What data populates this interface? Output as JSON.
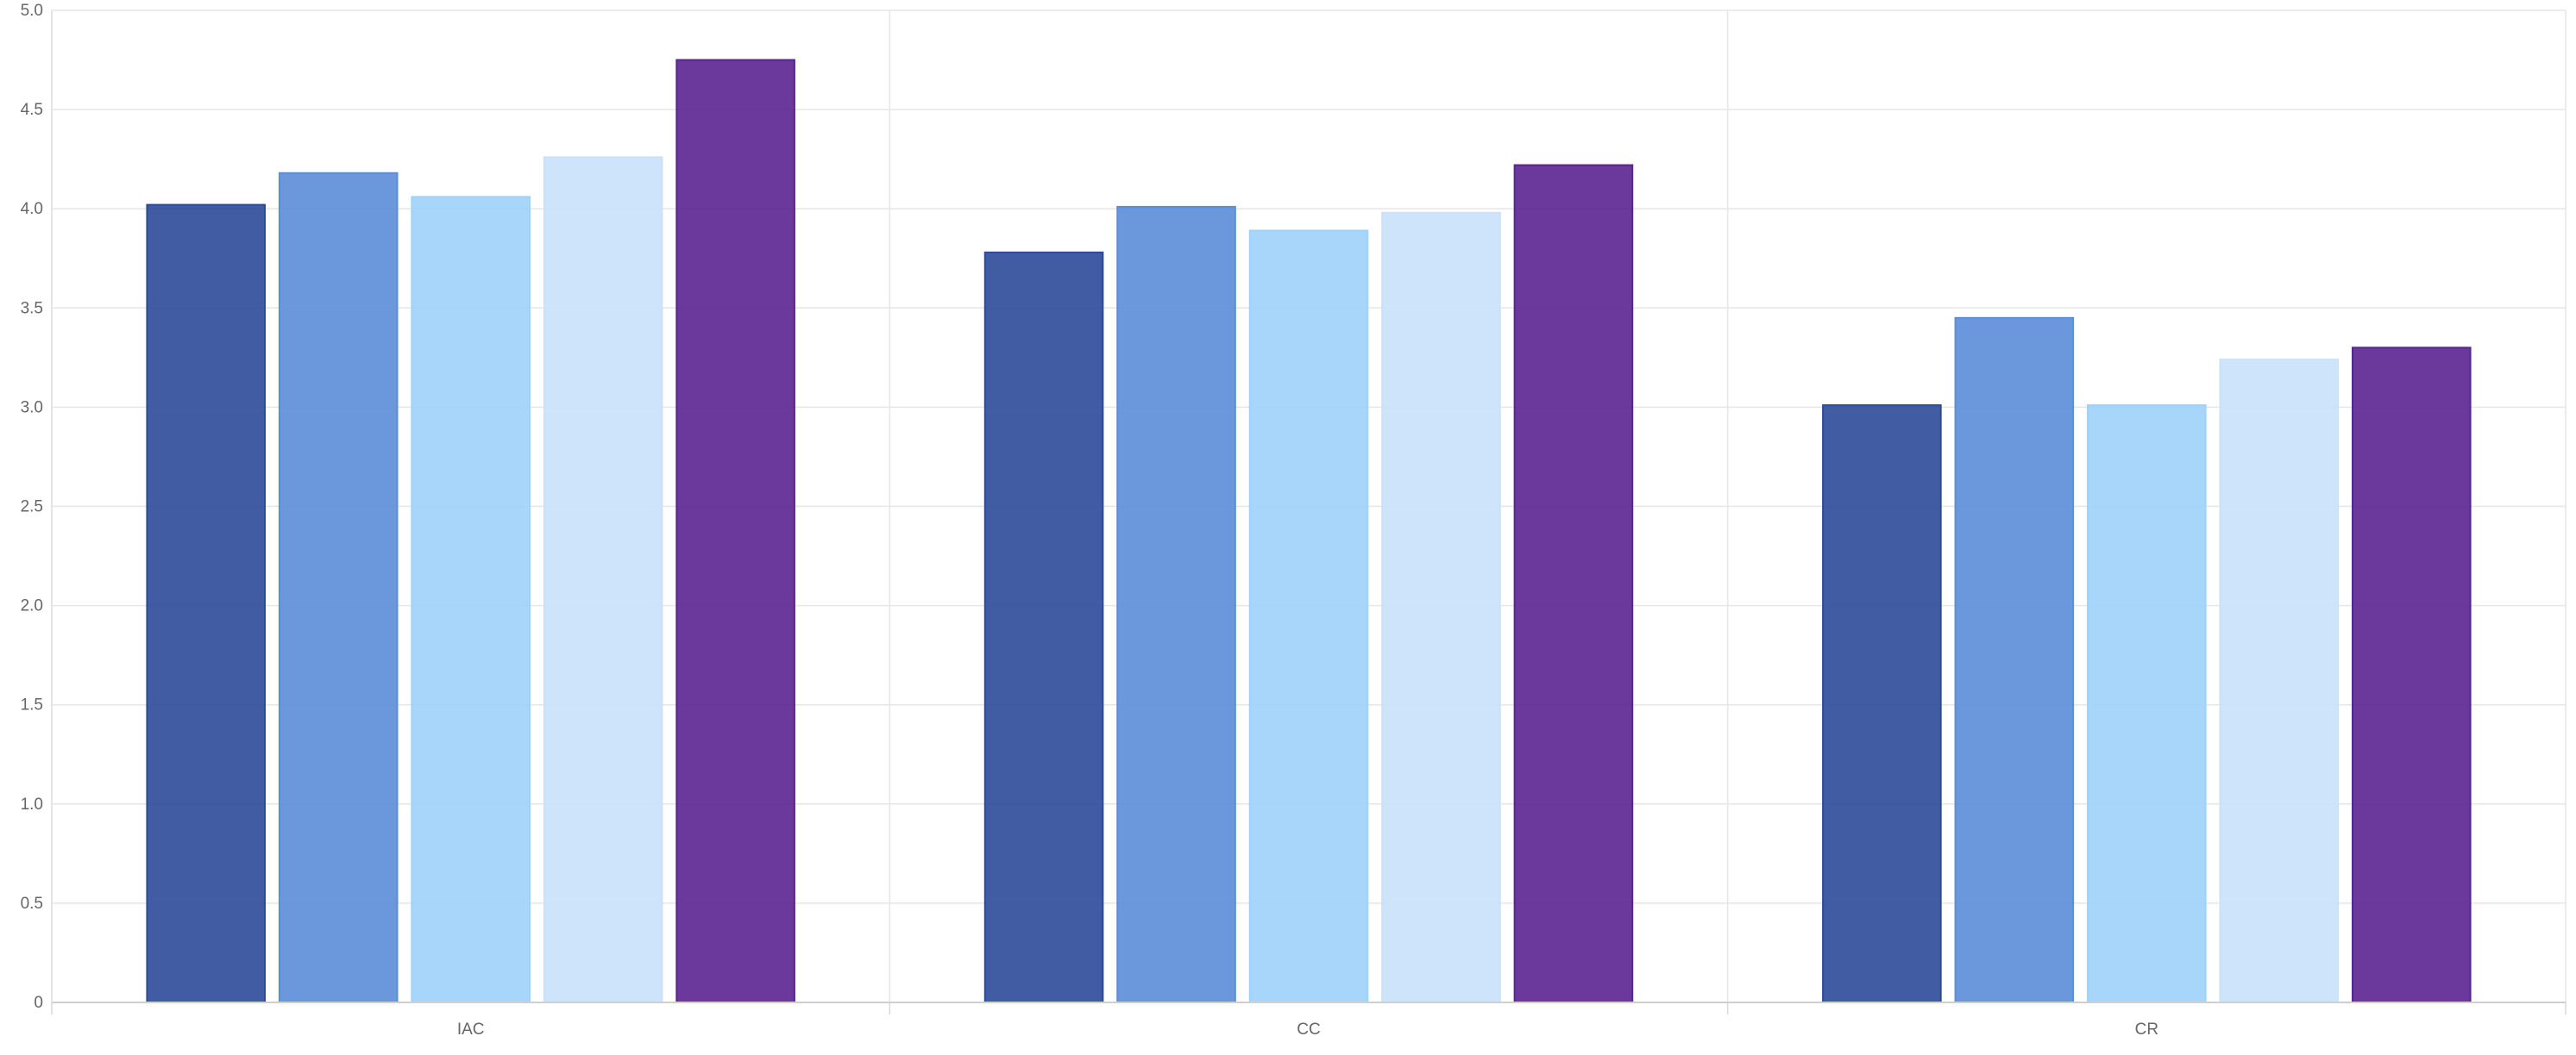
{
  "chart_data": {
    "type": "bar",
    "categories": [
      "IAC",
      "CC",
      "CR"
    ],
    "series": [
      {
        "values": [
          4.02,
          3.78,
          3.01
        ],
        "color": "#2c4a98"
      },
      {
        "values": [
          4.18,
          4.01,
          3.45
        ],
        "color": "#5b8dd9"
      },
      {
        "values": [
          4.06,
          3.89,
          3.01
        ],
        "color": "#9fd2fa"
      },
      {
        "values": [
          4.26,
          3.98,
          3.24
        ],
        "color": "#c9e1fa"
      },
      {
        "values": [
          4.75,
          4.22,
          3.3
        ],
        "color": "#5a2490"
      }
    ],
    "ylim": [
      0,
      5
    ],
    "yticks": [
      "0",
      "0.5",
      "1.0",
      "1.5",
      "2.0",
      "2.5",
      "3.0",
      "3.5",
      "4.0",
      "4.5",
      "5.0"
    ],
    "grid": true,
    "legend": "none",
    "title": "",
    "xlabel": "",
    "ylabel": ""
  }
}
